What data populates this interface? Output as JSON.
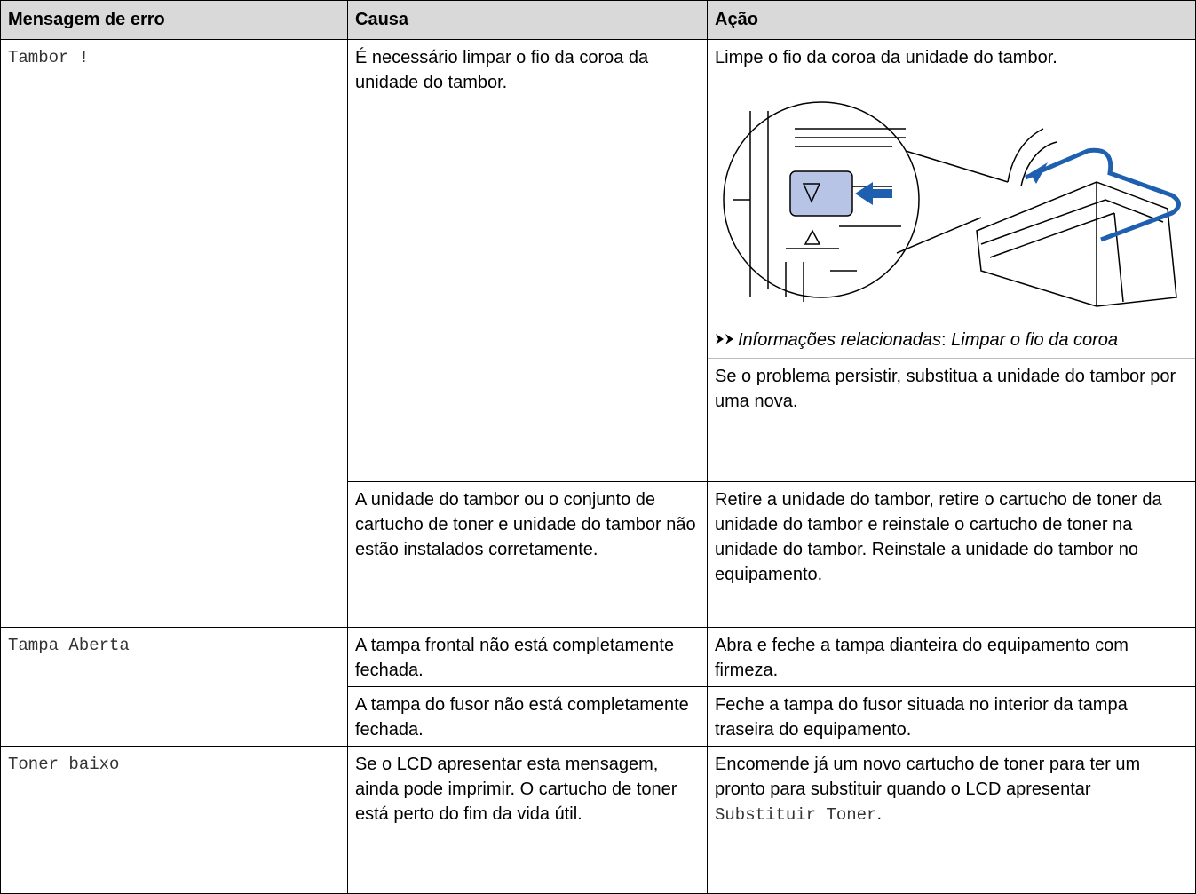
{
  "table": {
    "header": [
      "Mensagem de erro",
      "Causa",
      "Ação"
    ],
    "rows": [
      {
        "message": "Tambor !",
        "entries": [
          {
            "cause": "É necessário limpar o fio da coroa da unidade do tambor.",
            "action": {
              "text": "Limpe o fio da coroa da unidade do tambor.",
              "related": {
                "label": "Informações relacionadas",
                "separator": ":",
                "link": "Limpar o fio da coroa"
              },
              "note": "Se o problema persistir, substitua a unidade do tambor por uma nova."
            }
          },
          {
            "cause": "A unidade do tambor ou o conjunto de cartucho de toner e unidade do tambor não estão instalados corretamente.",
            "action": "Retire a unidade do tambor, retire o cartucho de toner da unidade do tambor e reinstale o cartucho de toner na unidade do tambor. Reinstale a unidade do tambor no equipamento."
          }
        ]
      },
      {
        "message": "Tampa Aberta",
        "entries": [
          {
            "cause": "A tampa frontal não está completamente fechada.",
            "action": "Abra e feche a tampa dianteira do equipamento com firmeza."
          },
          {
            "cause": "A tampa do fusor não está completamente fechada.",
            "action": "Feche a tampa do fusor situada no interior da tampa traseira do equipamento."
          }
        ]
      },
      {
        "message": "Toner baixo",
        "entries": [
          {
            "cause": "Se o LCD apresentar esta mensagem, ainda pode imprimir. O cartucho de toner está perto do fim da vida útil.",
            "action": {
              "text": "Encomende já um novo cartucho de toner para ter um pronto para substituir quando o LCD apresentar",
              "code": "Substituir Toner",
              "end": "."
            }
          }
        ]
      }
    ]
  }
}
